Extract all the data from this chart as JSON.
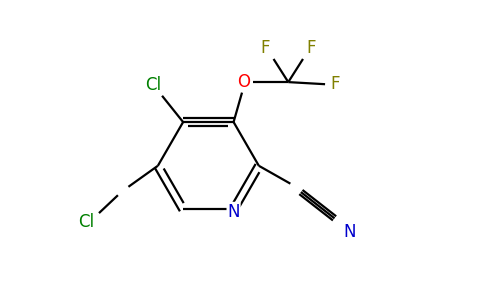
{
  "background_color": "#ffffff",
  "bond_color": "#000000",
  "atom_colors": {
    "Cl": "#008000",
    "O": "#ff0000",
    "F": "#808000",
    "N_ring": "#0000cd",
    "N_nitrile": "#0000cd",
    "C": "#000000"
  },
  "figsize": [
    4.84,
    3.0
  ],
  "dpi": 100,
  "lw": 1.6,
  "fontsize": 12
}
